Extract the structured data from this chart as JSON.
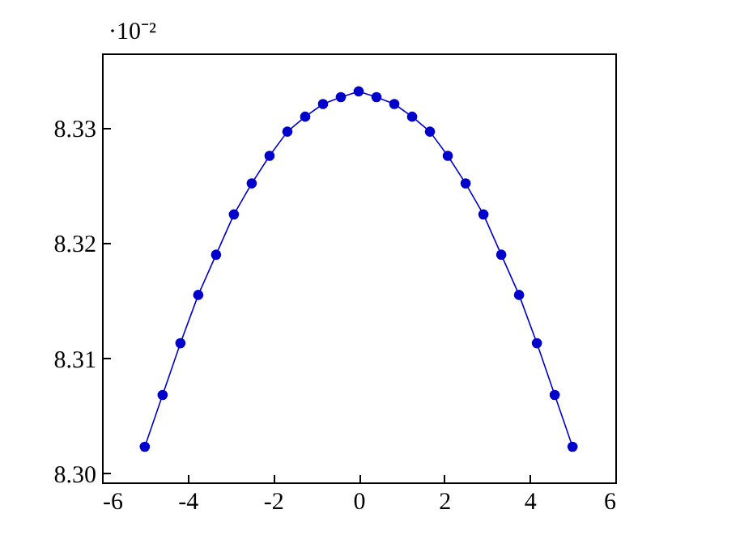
{
  "chart_data": {
    "type": "line",
    "annotations": [
      "·10⁻²"
    ],
    "x": [
      -5,
      -4.5833,
      -4.1667,
      -3.75,
      -3.3333,
      -2.9167,
      -2.5,
      -2.0833,
      -1.6667,
      -1.25,
      -0.8333,
      -0.4167,
      0,
      0.4167,
      0.8333,
      1.25,
      1.6667,
      2.0833,
      2.5,
      2.9167,
      3.3333,
      3.75,
      4.1667,
      4.5833,
      5
    ],
    "series": [
      {
        "color": "#0000cc",
        "values": [
          8.3023,
          8.3068,
          8.3113,
          8.3155,
          8.319,
          8.3225,
          8.3252,
          8.3276,
          8.3297,
          8.331,
          8.3321,
          8.3327,
          8.3332,
          8.3327,
          8.3321,
          8.331,
          8.3297,
          8.3276,
          8.3252,
          8.3225,
          8.319,
          8.3155,
          8.3113,
          8.3068,
          8.3023
        ]
      }
    ],
    "xlim": [
      -6,
      6
    ],
    "xticks": [
      -6,
      -4,
      -2,
      0,
      2,
      4,
      6
    ],
    "ylim": [
      8.2992,
      8.3365
    ],
    "yticks": [
      {
        "value": 8.3,
        "label": "8.30"
      },
      {
        "value": 8.31,
        "label": "8.31"
      },
      {
        "value": 8.32,
        "label": "8.32"
      },
      {
        "value": 8.33,
        "label": "8.33"
      }
    ],
    "grid": false,
    "marker": "circle",
    "line_style": "solid"
  }
}
